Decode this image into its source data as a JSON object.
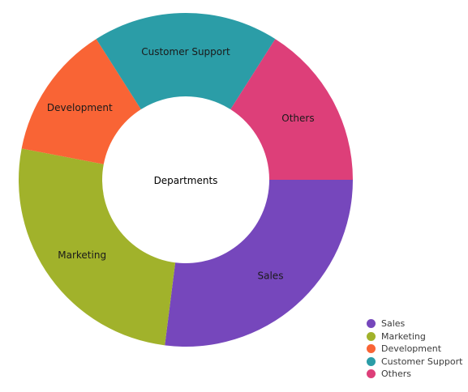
{
  "chart_data": {
    "type": "pie",
    "variant": "donut",
    "center_label": "Departments",
    "categories": [
      "Sales",
      "Marketing",
      "Development",
      "Customer Support",
      "Others"
    ],
    "values": [
      27,
      26,
      13,
      18,
      16
    ],
    "colors": [
      "#7647BC",
      "#A1B22B",
      "#F96435",
      "#2B9DA7",
      "#DD3F79"
    ],
    "legend_position": "bottom-right",
    "title": ""
  }
}
